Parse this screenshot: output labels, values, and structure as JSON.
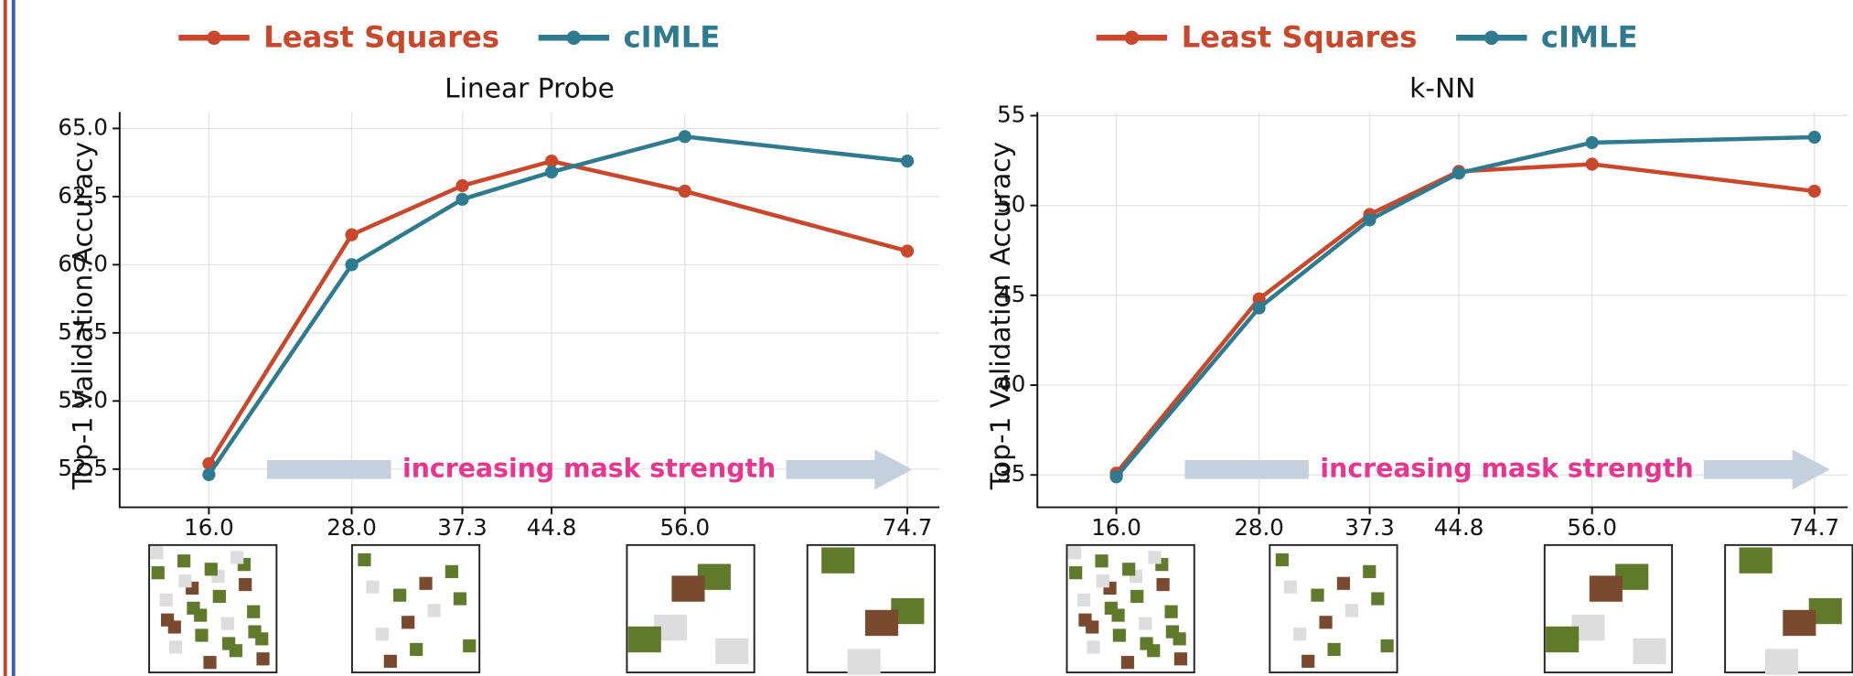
{
  "chart_data": [
    {
      "type": "line",
      "title": "Linear Probe",
      "y_label": "Top-1 Validation Accuracy",
      "annotation": "increasing mask strength",
      "x": [
        16.0,
        28.0,
        37.3,
        44.8,
        56.0,
        74.7
      ],
      "series": [
        {
          "name": "Least Squares",
          "color": "#c9472a",
          "values": [
            52.7,
            61.1,
            62.9,
            63.8,
            62.7,
            60.5
          ]
        },
        {
          "name": "cIMLE",
          "color": "#2e7a8f",
          "values": [
            52.3,
            60.0,
            62.4,
            63.4,
            64.7,
            63.8
          ]
        }
      ],
      "xlim": [
        8.5,
        77.4
      ],
      "xticks": [
        {
          "value": 16,
          "label": "16.0"
        },
        {
          "value": 28,
          "label": "28.0"
        },
        37.3,
        44.8,
        {
          "value": 56,
          "label": "56.0"
        },
        74.7
      ],
      "ylim": [
        51.1,
        65.6
      ],
      "yticks": [
        52.5,
        {
          "value": 55,
          "label": "55.0"
        },
        57.5,
        {
          "value": 60,
          "label": "60.0"
        },
        62.5,
        {
          "value": 65,
          "label": "65.0"
        }
      ],
      "grid": true
    },
    {
      "type": "line",
      "title": "k-NN",
      "y_label": "Top-1 Validation Accuracy",
      "annotation": "increasing mask strength",
      "x": [
        16.0,
        28.0,
        37.3,
        44.8,
        56.0,
        74.7
      ],
      "series": [
        {
          "name": "Least Squares",
          "color": "#c9472a",
          "values": [
            35.1,
            44.8,
            49.5,
            51.9,
            52.3,
            50.8
          ]
        },
        {
          "name": "cIMLE",
          "color": "#2e7a8f",
          "values": [
            34.9,
            44.3,
            49.2,
            51.8,
            53.5,
            53.8
          ]
        }
      ],
      "xlim": [
        9.36,
        77.5
      ],
      "xticks": [
        {
          "value": 16,
          "label": "16.0"
        },
        {
          "value": 28,
          "label": "28.0"
        },
        37.3,
        44.8,
        {
          "value": 56,
          "label": "56.0"
        },
        74.7
      ],
      "ylim": [
        33.2,
        55.2
      ],
      "yticks": [
        35,
        40,
        45,
        50,
        55
      ],
      "grid": true
    }
  ]
}
